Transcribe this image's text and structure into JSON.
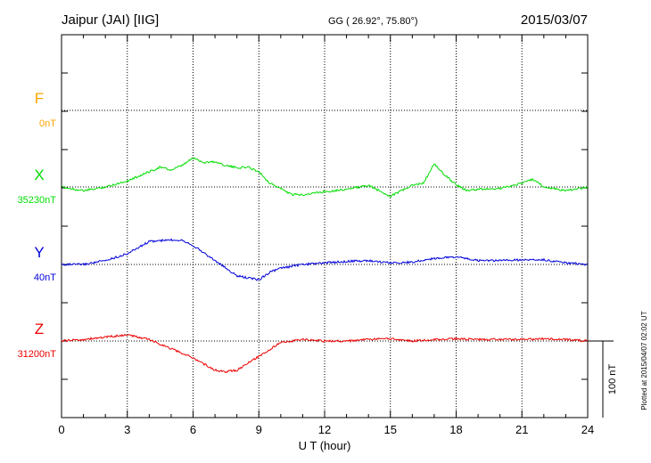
{
  "header": {
    "station": "Jaipur (JAI)  [IIG]",
    "coords": "GG ( 26.92°,  75.80°)",
    "date": "2015/03/07"
  },
  "footer": {
    "plotted": "Plotted at 2015/04/07 02:02 UT"
  },
  "chart_data": {
    "type": "line",
    "xlabel": "U T (hour)",
    "xlim": [
      0,
      24
    ],
    "xticks": [
      "0",
      "3",
      "6",
      "9",
      "12",
      "15",
      "18",
      "21",
      "24"
    ],
    "grid": true,
    "scale_bar": {
      "label": "100 nT",
      "value_nT": 100
    },
    "colors": {
      "F": "#ffa500",
      "X": "#00dd00",
      "Y": "#0000dd",
      "Z": "#ee0000"
    },
    "series": [
      {
        "name": "F",
        "baseline_label": "0nT",
        "x": [],
        "values": []
      },
      {
        "name": "X",
        "baseline_label": "35230nT",
        "x": [
          0,
          1,
          2,
          3,
          4,
          4.5,
          5,
          5.5,
          6,
          6.5,
          7,
          7.5,
          8,
          8.5,
          9,
          9.5,
          10,
          10.5,
          11,
          12,
          13,
          14,
          14.5,
          15,
          15.5,
          16,
          16.5,
          17,
          17.5,
          18,
          18.5,
          19,
          20,
          21,
          21.5,
          22,
          23,
          24
        ],
        "values": [
          0,
          -5,
          0,
          8,
          20,
          26,
          22,
          28,
          38,
          32,
          33,
          28,
          25,
          26,
          20,
          5,
          -2,
          -10,
          -10,
          -6,
          -3,
          2,
          -5,
          -12,
          -5,
          2,
          5,
          30,
          15,
          3,
          -5,
          -3,
          -2,
          5,
          10,
          0,
          -5,
          0
        ]
      },
      {
        "name": "Y",
        "baseline_label": "40nT",
        "x": [
          0,
          1,
          2,
          3,
          4,
          5,
          5.5,
          6,
          7,
          7.5,
          8,
          9,
          9.5,
          10,
          11,
          12,
          13,
          14,
          15,
          16,
          17,
          18,
          19,
          20,
          21,
          22,
          23,
          24
        ],
        "values": [
          0,
          0,
          5,
          14,
          30,
          32,
          32,
          25,
          5,
          -5,
          -15,
          -20,
          -10,
          -5,
          0,
          2,
          4,
          5,
          2,
          3,
          8,
          10,
          5,
          5,
          6,
          6,
          2,
          0
        ]
      },
      {
        "name": "Z",
        "baseline_label": "31200nT",
        "x": [
          0,
          1,
          2,
          3,
          4,
          5,
          6,
          7,
          7.5,
          8,
          9,
          10,
          11,
          12,
          13,
          14,
          15,
          16,
          17,
          18,
          19,
          20,
          21,
          22,
          23,
          24
        ],
        "values": [
          0,
          2,
          5,
          8,
          2,
          -10,
          -22,
          -38,
          -40,
          -38,
          -20,
          -2,
          2,
          0,
          0,
          2,
          3,
          0,
          2,
          3,
          2,
          2,
          2,
          3,
          2,
          0
        ]
      }
    ]
  }
}
